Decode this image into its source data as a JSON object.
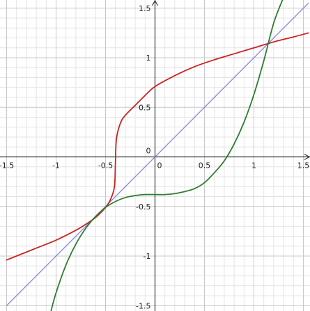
{
  "chart_data": {
    "type": "line",
    "title": "",
    "xlabel": "",
    "ylabel": "",
    "xlim": [
      -1.5,
      1.55
    ],
    "ylim": [
      -1.55,
      1.55
    ],
    "grid": true,
    "x_ticks": [
      {
        "value": -1.5,
        "label": "-1.5"
      },
      {
        "value": -1,
        "label": "-1"
      },
      {
        "value": -0.5,
        "label": "-0.5"
      },
      {
        "value": 0,
        "label": "0"
      },
      {
        "value": 0.5,
        "label": "0.5"
      },
      {
        "value": 1,
        "label": "1"
      },
      {
        "value": 1.5,
        "label": "1.5"
      }
    ],
    "y_ticks": [
      {
        "value": -1.5,
        "label": "-1.5"
      },
      {
        "value": -1,
        "label": "-1"
      },
      {
        "value": -0.5,
        "label": "-0.5"
      },
      {
        "value": 0.5,
        "label": "0.5"
      },
      {
        "value": 1,
        "label": "1"
      },
      {
        "value": 1.5,
        "label": "1.5"
      }
    ],
    "series": [
      {
        "color": "#8888ee",
        "x": [
          -1.5,
          -1,
          -0.5,
          0,
          0.5,
          1,
          1.55
        ],
        "y": [
          -1.5,
          -1,
          -0.5,
          0,
          0.5,
          1,
          1.55
        ]
      },
      {
        "color": "#cc2222",
        "x": [
          -1.5,
          -1.4,
          -1.2,
          -1.0,
          -0.8,
          -0.7,
          -0.6,
          -0.5,
          -0.45,
          -0.41,
          -0.4,
          -0.39,
          -0.35,
          -0.3,
          -0.2,
          -0.1,
          0,
          0.2,
          0.4,
          0.6,
          0.8,
          1.0,
          1.2,
          1.4,
          1.55
        ],
        "y": [
          -1.04,
          -1.0,
          -0.92,
          -0.84,
          -0.74,
          -0.68,
          -0.61,
          -0.51,
          -0.43,
          -0.3,
          -0.06,
          0.18,
          0.34,
          0.42,
          0.52,
          0.62,
          0.71,
          0.82,
          0.91,
          0.98,
          1.04,
          1.1,
          1.16,
          1.21,
          1.25
        ]
      },
      {
        "color": "#2e7d32",
        "x": [
          -1.05,
          -1.0,
          -0.9,
          -0.8,
          -0.7,
          -0.6,
          -0.5,
          -0.4,
          -0.3,
          -0.2,
          -0.1,
          0,
          0.1,
          0.2,
          0.3,
          0.4,
          0.5,
          0.6,
          0.7,
          0.8,
          0.9,
          1.0,
          1.1,
          1.2,
          1.3,
          1.38
        ],
        "y": [
          -1.55,
          -1.37,
          -1.09,
          -0.88,
          -0.72,
          -0.6,
          -0.51,
          -0.45,
          -0.41,
          -0.39,
          -0.38,
          -0.38,
          -0.38,
          -0.37,
          -0.35,
          -0.32,
          -0.26,
          -0.16,
          -0.04,
          0.13,
          0.35,
          0.63,
          0.97,
          1.35,
          1.61,
          1.8
        ]
      }
    ]
  }
}
